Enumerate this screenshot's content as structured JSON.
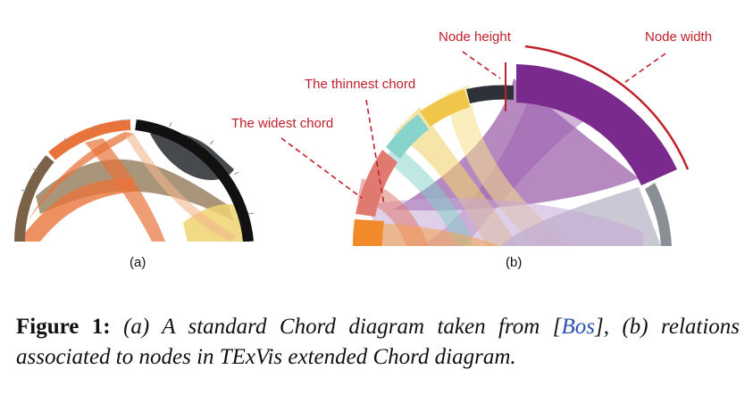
{
  "labels": {
    "a": "(a)",
    "b": "(b)"
  },
  "annotations": {
    "node_height": "Node height",
    "node_width": "Node width",
    "thinnest_chord": "The thinnest chord",
    "widest_chord": "The widest chord"
  },
  "caption": {
    "figure_label": "Figure 1:",
    "text_before_cite": " (a) A standard Chord diagram taken from [",
    "cite": "Bos",
    "text_after_cite": "], (b) relations associated to nodes in TExVis extended Chord diagram."
  },
  "colors": {
    "annotation_red": "#c0202a",
    "orange": "#e8743b",
    "dark": "#3c3f44",
    "tan": "#a08a6a",
    "yellow": "#f0d270",
    "purple": "#7a2a8c",
    "teal": "#7fd0c8",
    "salmon": "#e07a70",
    "gray": "#9aa0a8"
  }
}
